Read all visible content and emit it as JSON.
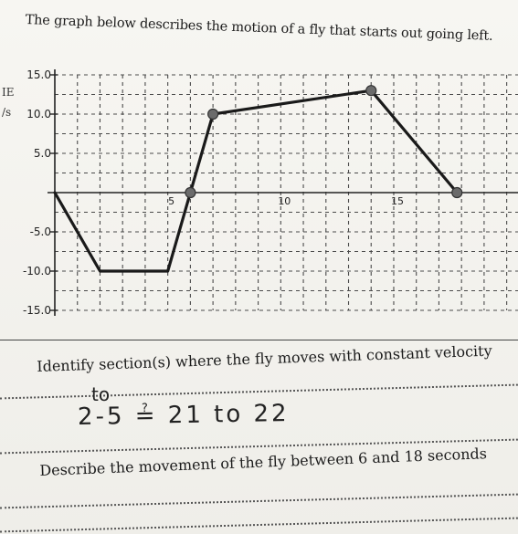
{
  "header": {
    "title": "The graph below describes the motion of a fly that starts out going left."
  },
  "side_labels": [
    "IE",
    "/s"
  ],
  "questions": [
    "Identify section(s) where the fly moves with constant velocity",
    "Describe the movement of the fly between 6 and 18 seconds"
  ],
  "answers": {
    "line1": "to",
    "line2": "2-5   ≟   21 to 22"
  },
  "colors": {
    "line": "#1a1a1a",
    "grid": "#4a4a4a",
    "point": "#6b6b6b"
  },
  "chart_data": {
    "type": "line",
    "title": "",
    "xlabel": "",
    "ylabel": "",
    "xlim": [
      0,
      20.5
    ],
    "ylim": [
      -15,
      15
    ],
    "y_ticks": [
      15.0,
      10.0,
      5.0,
      -5.0,
      -10.0,
      -15.0
    ],
    "y_tick_labels": [
      "15.0",
      "10.0",
      "5.0",
      "-5.0",
      "-10.0",
      "-15.0"
    ],
    "x_ticks": [
      5,
      10,
      15
    ],
    "x_tick_labels": [
      "5",
      "10",
      "15"
    ],
    "grid": true,
    "series": [
      {
        "x": [
          0,
          2,
          5,
          6,
          7,
          14,
          17.8
        ],
        "y": [
          0,
          -10,
          -10,
          0,
          10,
          13,
          0
        ]
      }
    ],
    "marked_points": [
      [
        6,
        0
      ],
      [
        7,
        10
      ],
      [
        14,
        13
      ],
      [
        17.8,
        0
      ]
    ]
  }
}
